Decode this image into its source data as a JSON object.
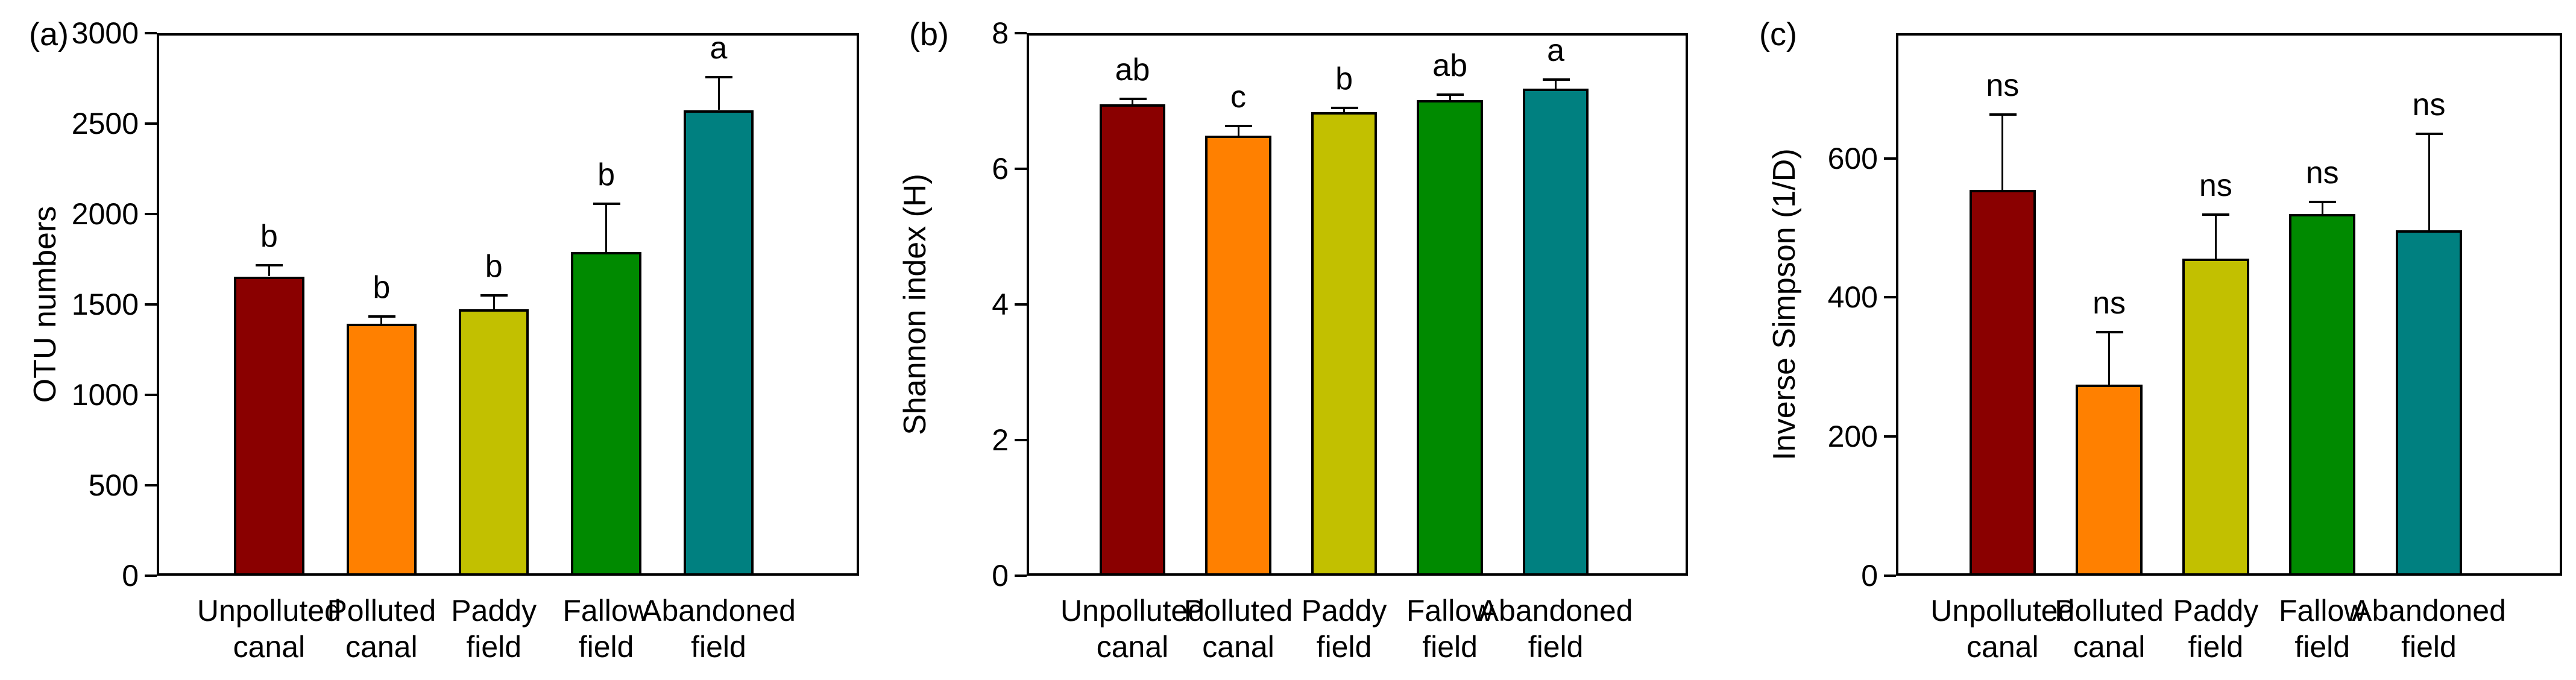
{
  "figure": {
    "background": "#ffffff",
    "frame_color": "#000000",
    "bar_colors": [
      "#8a0000",
      "#ff8000",
      "#c2c000",
      "#008a00",
      "#008080"
    ],
    "categories": [
      "Unpolluted canal",
      "Polluted canal",
      "Paddy field",
      "Fallow field",
      "Abandoned field"
    ],
    "categories_lines": [
      [
        "Unpolluted",
        "canal"
      ],
      [
        "Polluted",
        "canal"
      ],
      [
        "Paddy",
        "field"
      ],
      [
        "Fallow",
        "field"
      ],
      [
        "Abandoned",
        "field"
      ]
    ]
  },
  "chart_data": [
    {
      "type": "bar",
      "panel_label": "(a)",
      "ylabel": "OTU numbers",
      "xlabel": "",
      "categories": [
        "Unpolluted canal",
        "Polluted canal",
        "Paddy field",
        "Fallow field",
        "Abandoned field"
      ],
      "values": [
        1655,
        1395,
        1475,
        1790,
        2575
      ],
      "errors": [
        62,
        40,
        75,
        268,
        183
      ],
      "sig_letters": [
        "b",
        "b",
        "b",
        "b",
        "a"
      ],
      "bar_colors": [
        "#8a0000",
        "#ff8000",
        "#c2c000",
        "#008a00",
        "#008080"
      ],
      "yticks": [
        0,
        500,
        1000,
        1500,
        2000,
        2500,
        3000
      ],
      "ytick_labels": [
        "0",
        "500",
        "1000",
        "1500",
        "2000",
        "2500",
        "3000"
      ],
      "ylim": [
        0,
        3000
      ],
      "grid": false,
      "legend": null,
      "error_bar_direction": "upper-only"
    },
    {
      "type": "bar",
      "panel_label": "(b)",
      "ylabel": "Shannon index (H)",
      "xlabel": "",
      "categories": [
        "Unpolluted canal",
        "Polluted canal",
        "Paddy field",
        "Fallow field",
        "Abandoned field"
      ],
      "values": [
        6.95,
        6.49,
        6.84,
        7.01,
        7.18
      ],
      "errors": [
        0.08,
        0.14,
        0.06,
        0.08,
        0.14
      ],
      "sig_letters": [
        "ab",
        "c",
        "b",
        "ab",
        "a"
      ],
      "bar_colors": [
        "#8a0000",
        "#ff8000",
        "#c2c000",
        "#008a00",
        "#008080"
      ],
      "yticks": [
        0,
        2,
        4,
        6,
        8
      ],
      "ytick_labels": [
        "0",
        "2",
        "4",
        "6",
        "8"
      ],
      "ylim": [
        0,
        8
      ],
      "grid": false,
      "legend": null,
      "error_bar_direction": "upper-only"
    },
    {
      "type": "bar",
      "panel_label": "(c)",
      "ylabel": "Inverse Simpson (1/D)",
      "xlabel": "",
      "categories": [
        "Unpolluted canal",
        "Polluted canal",
        "Paddy field",
        "Fallow field",
        "Abandoned field"
      ],
      "values": [
        555,
        275,
        456,
        520,
        497
      ],
      "errors": [
        108,
        75,
        63,
        17,
        138
      ],
      "sig_letters": [
        "ns",
        "ns",
        "ns",
        "ns",
        "ns"
      ],
      "bar_colors": [
        "#8a0000",
        "#ff8000",
        "#c2c000",
        "#008a00",
        "#008080"
      ],
      "yticks": [
        0,
        200,
        400,
        600
      ],
      "ytick_labels": [
        "0",
        "200",
        "400",
        "600"
      ],
      "ylim": [
        0,
        780
      ],
      "grid": false,
      "legend": null,
      "error_bar_direction": "upper-only"
    }
  ]
}
